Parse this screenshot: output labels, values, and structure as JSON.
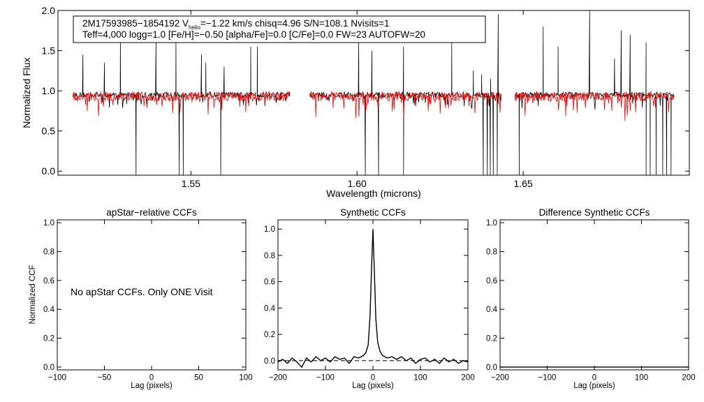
{
  "chart_data": [
    {
      "type": "line",
      "panel": "spectrum",
      "xlabel": "Wavelength (microns)",
      "ylabel": "Normalized Flux",
      "xlim": [
        1.51,
        1.7
      ],
      "ylim": [
        -0.05,
        2.0
      ],
      "xticks": [
        1.55,
        1.6,
        1.65
      ],
      "xtick_labels": [
        "1.55",
        "1.60",
        "1.65"
      ],
      "yticks": [
        0.0,
        0.5,
        1.0,
        1.5,
        2.0
      ],
      "ytick_labels": [
        "0.0",
        "0.5",
        "1.0",
        "1.5",
        "2.0"
      ],
      "info_line1": "2M17593985−1854192  V",
      "info_sub": "helio",
      "info_line1_rest": "=−1.22 km/s  chisq=4.96  S/N=108.1  Nvisits=1",
      "info_line2": "Teff=4,000 logg=1.0 [Fe/H]=−0.50 [alpha/Fe]=0.0 [C/Fe]=0.0 FW=23 AUTOFW=20",
      "chips": [
        [
          1.5145,
          1.58
        ],
        [
          1.5858,
          1.6435
        ],
        [
          1.6475,
          1.6955
        ]
      ],
      "series": [
        {
          "name": "observed",
          "color": "#000000",
          "continuum": 0.95,
          "scatter": 0.035,
          "spikes": [
            1.5175,
            1.524,
            1.5288,
            1.5395,
            1.5455,
            1.5532,
            1.5545,
            1.56,
            1.568,
            1.57,
            1.6005,
            1.6045,
            1.614,
            1.6285,
            1.635,
            1.6375,
            1.6402,
            1.6425,
            1.656,
            1.6605,
            1.67,
            1.6775,
            1.6795,
            1.6822,
            1.687
          ],
          "spike_heights": [
            1.45,
            1.35,
            1.6,
            1.6,
            1.6,
            1.45,
            1.35,
            1.3,
            1.55,
            1.55,
            1.6,
            1.5,
            1.55,
            1.6,
            1.25,
            1.2,
            1.15,
            1.95,
            1.8,
            1.55,
            2.0,
            1.4,
            1.75,
            1.7,
            1.6
          ],
          "dips": [
            1.5335,
            1.5465,
            1.5477,
            1.559,
            1.6025,
            1.6065,
            1.614,
            1.638,
            1.6392,
            1.6401,
            1.641,
            1.6422,
            1.6488,
            1.687,
            1.6882,
            1.69,
            1.692,
            1.6932,
            1.6945
          ]
        },
        {
          "name": "synthetic",
          "color": "#ff0000",
          "continuum": 0.93,
          "scatter": 0.06
        }
      ]
    },
    {
      "type": "line",
      "panel": "apstar_ccf",
      "title": "apStar−relative CCFs",
      "xlabel": "Lag (pixels)",
      "ylabel": "Normalized CCF",
      "xlim": [
        -100,
        100
      ],
      "ylim": [
        -0.02,
        1.02
      ],
      "xticks": [
        -100,
        -50,
        0,
        50,
        100
      ],
      "xtick_labels": [
        "−100",
        "−50",
        "0",
        "50",
        "100"
      ],
      "yticks": [
        0.0,
        0.2,
        0.4,
        0.6,
        0.8,
        1.0
      ],
      "ytick_labels": [
        "0.0",
        "0.2",
        "0.4",
        "0.6",
        "0.8",
        "1.0"
      ],
      "annotation": "No apStar CCFs.  Only ONE Visit",
      "series": []
    },
    {
      "type": "line",
      "panel": "synthetic_ccf",
      "title": "Synthetic CCFs",
      "xlabel": "Lag (pixels)",
      "ylabel": "",
      "xlim": [
        -200,
        200
      ],
      "ylim": [
        -0.07,
        1.07
      ],
      "xticks": [
        -200,
        -100,
        0,
        100,
        200
      ],
      "xtick_labels": [
        "−200",
        "−100",
        "0",
        "100",
        "200"
      ],
      "yticks": [
        0.0,
        0.2,
        0.4,
        0.6,
        0.8,
        1.0
      ],
      "ytick_labels": [
        "0.0",
        "0.2",
        "0.4",
        "0.6",
        "0.8",
        "1.0"
      ],
      "reference_line": 0.0,
      "series": [
        {
          "name": "ccf",
          "color": "#000000",
          "x": [
            -200,
            -190,
            -180,
            -170,
            -160,
            -150,
            -140,
            -130,
            -120,
            -110,
            -100,
            -90,
            -80,
            -70,
            -60,
            -50,
            -40,
            -30,
            -20,
            -15,
            -10,
            -6,
            -3,
            0,
            3,
            6,
            10,
            15,
            20,
            30,
            40,
            50,
            60,
            70,
            80,
            90,
            100,
            110,
            120,
            130,
            140,
            150,
            160,
            170,
            180,
            190,
            200
          ],
          "y": [
            -0.01,
            0.01,
            -0.02,
            0.02,
            -0.01,
            -0.05,
            0.02,
            -0.01,
            0.03,
            0.0,
            0.02,
            -0.01,
            0.03,
            0.01,
            0.02,
            -0.02,
            0.03,
            0.02,
            0.04,
            0.06,
            0.12,
            0.35,
            0.7,
            1.0,
            0.68,
            0.32,
            0.14,
            0.07,
            0.04,
            0.02,
            0.03,
            0.01,
            0.03,
            0.0,
            0.02,
            -0.02,
            0.01,
            0.02,
            -0.01,
            0.01,
            -0.02,
            0.02,
            -0.01,
            0.01,
            -0.02,
            0.0,
            -0.01
          ]
        }
      ]
    },
    {
      "type": "line",
      "panel": "difference_ccf",
      "title": "Difference Synthetic CCFs",
      "xlabel": "Lag (pixels)",
      "ylabel": "",
      "xlim": [
        -200,
        200
      ],
      "ylim": [
        -0.02,
        1.02
      ],
      "xticks": [
        -200,
        -100,
        0,
        100,
        200
      ],
      "xtick_labels": [
        "−200",
        "−100",
        "0",
        "100",
        "200"
      ],
      "yticks": [
        0.0,
        0.2,
        0.4,
        0.6,
        0.8,
        1.0
      ],
      "ytick_labels": [
        "0.0",
        "0.2",
        "0.4",
        "0.6",
        "0.8",
        "1.0"
      ],
      "series": [
        {
          "name": "difference",
          "color": "#000000",
          "x": [
            -200,
            200
          ],
          "y": [
            0.0,
            0.0
          ]
        }
      ]
    }
  ]
}
